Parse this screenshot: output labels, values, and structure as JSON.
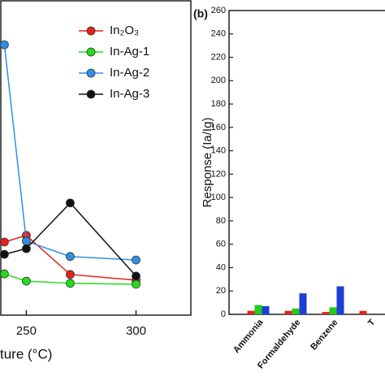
{
  "chart_data": [
    {
      "type": "line",
      "xlabel": "ture (°C)",
      "x": [
        240,
        250,
        270,
        300
      ],
      "xlim": [
        238,
        325
      ],
      "xticks": [
        250,
        300
      ],
      "ylim": [
        0,
        100
      ],
      "series": [
        {
          "name": "In₂O₃",
          "color": "#e8201c",
          "values": [
            23.2,
            25.3,
            12.9,
            11.1
          ]
        },
        {
          "name": "In-Ag-1",
          "color": "#22dd1c",
          "values": [
            13.1,
            10.8,
            10.1,
            9.8
          ]
        },
        {
          "name": "In-Ag-2",
          "color": "#2f8fe8",
          "values": [
            85.8,
            23.5,
            18.6,
            17.5
          ]
        },
        {
          "name": "In-Ag-3",
          "color": "#111111",
          "values": [
            19.3,
            21.1,
            35.6,
            12.4
          ]
        }
      ]
    },
    {
      "type": "bar",
      "title": "(b)",
      "ylabel": "Response (Ia/Ig)",
      "categories": [
        "Ammonia",
        "Formaldehyde",
        "Benzene",
        "T"
      ],
      "ylim": [
        0,
        260
      ],
      "yticks": [
        0,
        20,
        40,
        60,
        80,
        100,
        120,
        140,
        160,
        180,
        200,
        220,
        240,
        260
      ],
      "series": [
        {
          "color": "#e8201c",
          "values": [
            3,
            3,
            2,
            3
          ]
        },
        {
          "color": "#22cc1c",
          "values": [
            8,
            5,
            6,
            null
          ]
        },
        {
          "color": "#1d3fd8",
          "values": [
            7,
            18,
            24,
            null
          ]
        }
      ]
    }
  ]
}
